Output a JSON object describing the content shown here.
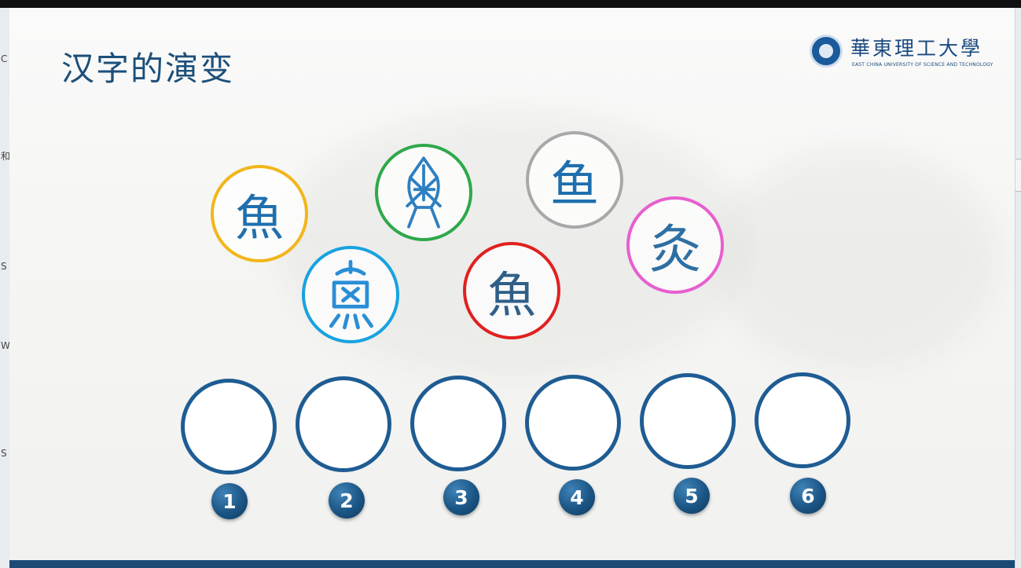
{
  "slide": {
    "title": "汉字的演变",
    "logo": {
      "name": "華東理工大學",
      "subtitle": "EAST CHINA UNIVERSITY OF SCIENCE AND TECHNOLOGY"
    }
  },
  "glyphs": [
    {
      "id": "g1",
      "char": "魚",
      "ring_color": "#f2b61c"
    },
    {
      "id": "g2",
      "char": "",
      "ring_color": "#18a2e0",
      "note": "seal-script-fish"
    },
    {
      "id": "g3",
      "char": "",
      "ring_color": "#2fa84a",
      "note": "oracle-bone-fish"
    },
    {
      "id": "g4",
      "char": "魚",
      "ring_color": "#e02020"
    },
    {
      "id": "g5",
      "char": "鱼",
      "ring_color": "#a8a8a8"
    },
    {
      "id": "g6",
      "char": "灸",
      "ring_color": "#e75fcf"
    }
  ],
  "slots": [
    "1",
    "2",
    "3",
    "4",
    "5",
    "6"
  ],
  "colors": {
    "title": "#1c4f7a",
    "slot_border": "#1e5c93",
    "number_badge": "#1b5584",
    "footer_bar": "#1b4a75"
  }
}
